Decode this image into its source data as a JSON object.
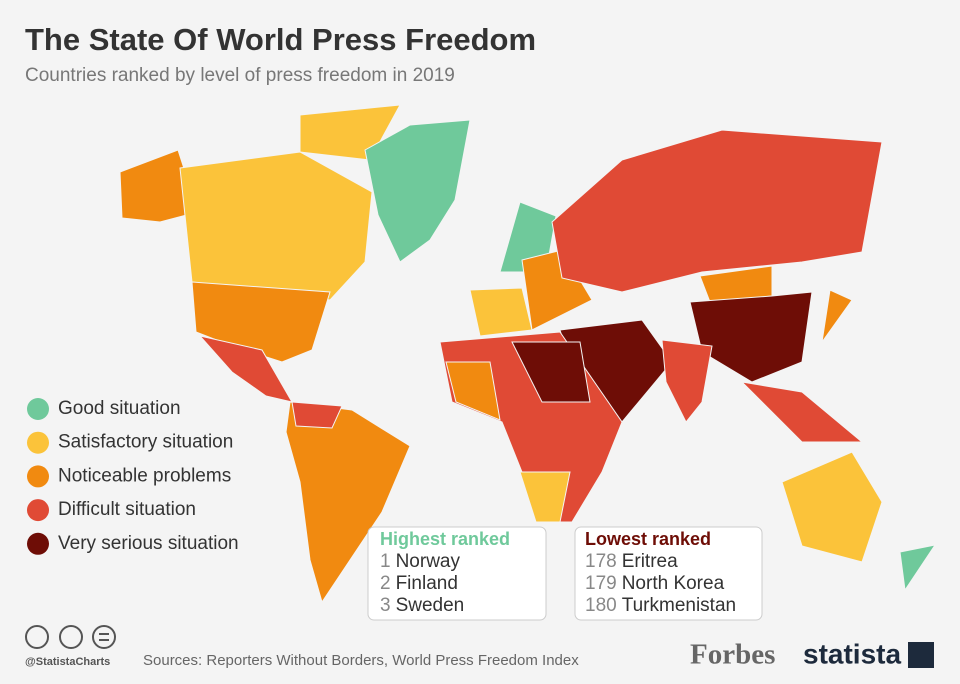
{
  "header": {
    "title": "The State Of World Press Freedom",
    "subtitle": "Countries ranked by level of press freedom in 2019"
  },
  "legend": [
    {
      "label": "Good situation",
      "color": "#6fc99b"
    },
    {
      "label": "Satisfactory situation",
      "color": "#fbc33a"
    },
    {
      "label": "Noticeable problems",
      "color": "#f18a10"
    },
    {
      "label": "Difficult situation",
      "color": "#e04a35"
    },
    {
      "label": "Very serious situation",
      "color": "#6e0d06"
    }
  ],
  "highest": {
    "title": "Highest ranked",
    "rows": [
      {
        "rank": 1,
        "country": "Norway"
      },
      {
        "rank": 2,
        "country": "Finland"
      },
      {
        "rank": 3,
        "country": "Sweden"
      }
    ]
  },
  "lowest": {
    "title": "Lowest ranked",
    "rows": [
      {
        "rank": 178,
        "country": "Eritrea"
      },
      {
        "rank": 179,
        "country": "North Korea"
      },
      {
        "rank": 180,
        "country": "Turkmenistan"
      }
    ]
  },
  "footer": {
    "handle": "@StatistaCharts",
    "source": "Sources: Reporters Without Borders, World Press Freedom Index",
    "brands": [
      "Forbes",
      "statista"
    ]
  }
}
